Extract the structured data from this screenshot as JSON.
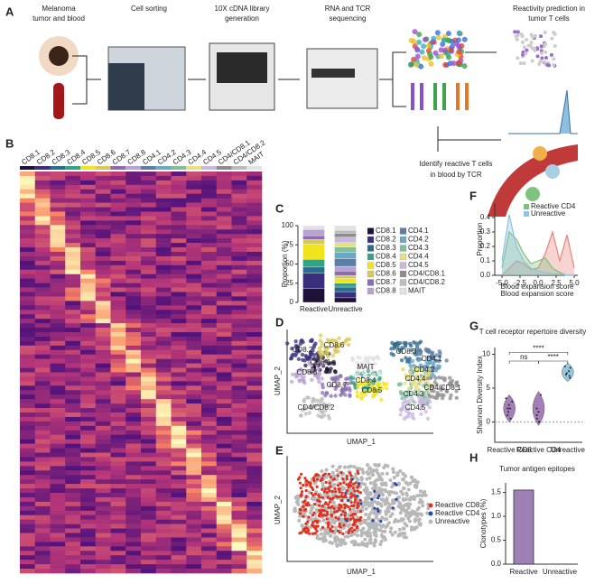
{
  "panel_labels": [
    "A",
    "B",
    "C",
    "D",
    "E",
    "F",
    "G",
    "H"
  ],
  "workflow": {
    "steps": [
      [
        "Melanoma",
        "tumor and blood"
      ],
      [
        "Cell sorting"
      ],
      [
        "10X cDNA library",
        "generation"
      ],
      [
        "RNA and TCR",
        "sequencing"
      ],
      [
        "Reactivity prediction in",
        "tumor T cells"
      ]
    ],
    "identify": [
      "Identify reactive T cells",
      "in blood by TCR"
    ]
  },
  "heatmap": {
    "clusters": [
      "CD8.1",
      "CD8.2",
      "CD8.3",
      "CD8.4",
      "CD8.5",
      "CD8.6",
      "CD8.7",
      "CD8.8",
      "CD4.1",
      "CD4.2",
      "CD4.3",
      "CD4.4",
      "CD4.5",
      "CD4/CD8.1",
      "CD4/CD8.2",
      "MAIT"
    ]
  },
  "chart_data": [
    {
      "type": "stacked_bar",
      "ylabel": "Proportion (%)",
      "categories": [
        "Reactive",
        "Unreactive"
      ],
      "ylim": [
        0,
        100
      ],
      "yticks": [
        0,
        25,
        50,
        75,
        100
      ],
      "series": [
        {
          "name": "CD8.1",
          "color": "#1c1136",
          "values": [
            18,
            6
          ]
        },
        {
          "name": "CD8.2",
          "color": "#3a2f7c",
          "values": [
            20,
            8
          ]
        },
        {
          "name": "CD8.3",
          "color": "#2d6b8c",
          "values": [
            8,
            6
          ]
        },
        {
          "name": "CD8.4",
          "color": "#35a287",
          "values": [
            10,
            5
          ]
        },
        {
          "name": "CD8.5",
          "color": "#f2e41c",
          "values": [
            20,
            6
          ]
        },
        {
          "name": "CD8.6",
          "color": "#d8c85a",
          "values": [
            6,
            4
          ]
        },
        {
          "name": "CD8.7",
          "color": "#8a6fb0",
          "values": [
            5,
            6
          ]
        },
        {
          "name": "CD8.8",
          "color": "#b9a2d2",
          "values": [
            8,
            6
          ]
        },
        {
          "name": "CD4.1",
          "color": "#5b7da6",
          "values": [
            0,
            10
          ]
        },
        {
          "name": "CD4.2",
          "color": "#6ba8c3",
          "values": [
            0,
            8
          ]
        },
        {
          "name": "CD4.3",
          "color": "#80be9c",
          "values": [
            0,
            7
          ]
        },
        {
          "name": "CD4.4",
          "color": "#e8e07a",
          "values": [
            0,
            6
          ]
        },
        {
          "name": "CD4.5",
          "color": "#c8b7e1",
          "values": [
            0,
            7
          ]
        },
        {
          "name": "CD4/CD8.1",
          "color": "#8c8c8c",
          "values": [
            0,
            5
          ]
        },
        {
          "name": "CD4/CD8.2",
          "color": "#bcbcbc",
          "values": [
            0,
            4
          ]
        },
        {
          "name": "MAIT",
          "color": "#e2e2e2",
          "values": [
            5,
            6
          ]
        }
      ]
    },
    {
      "type": "density",
      "ylabel": "Proportion",
      "xlabel": "Blood expansion score",
      "x": [
        -5,
        -4,
        -3,
        -2,
        -1,
        0,
        1,
        2,
        3,
        4,
        5
      ],
      "xlim": [
        -6,
        5.5
      ],
      "ylim": [
        0,
        0.5
      ],
      "xticks": [
        {
          "value": -5,
          "label": "-5.0"
        },
        {
          "value": -2.5,
          "label": "-2.5"
        },
        {
          "value": 0,
          "label": "0.0"
        },
        {
          "value": 2.5,
          "label": "2.5"
        },
        {
          "value": 5,
          "label": "5.0"
        }
      ],
      "yticks": [
        {
          "value": 0,
          "label": "0.0"
        },
        {
          "value": 0.1,
          "label": "0.1"
        },
        {
          "value": 0.2,
          "label": "0.2"
        },
        {
          "value": 0.3,
          "label": "0.3"
        },
        {
          "value": 0.4,
          "label": "0.4"
        }
      ],
      "series": [
        {
          "color": "#e8857a",
          "values": [
            0,
            0.05,
            0.1,
            0.08,
            0.04,
            0.05,
            0.15,
            0.3,
            0.1,
            0.28,
            0.05
          ]
        },
        {
          "name": "Reactive CD4",
          "color": "#7fbf7f",
          "values": [
            0.05,
            0.3,
            0.25,
            0.15,
            0.08,
            0.1,
            0.12,
            0.05,
            0.02,
            0,
            0
          ]
        },
        {
          "name": "Unreactive",
          "color": "#8fc3e0",
          "values": [
            0.1,
            0.42,
            0.2,
            0.1,
            0.05,
            0.03,
            0.02,
            0.01,
            0.01,
            0,
            0
          ]
        }
      ]
    },
    {
      "type": "violin",
      "title": "T cell receptor repertoire diversity",
      "ylabel": "Shannon Diversity Index",
      "categories": [
        "Reactive CD8",
        "Reactive CD4",
        "Unreactive"
      ],
      "colors": [
        "#8e5fa8",
        "#8e5fa8",
        "#7ab8d6"
      ],
      "ylim": [
        -3,
        11
      ],
      "yticks": [
        0,
        5,
        10
      ],
      "values": [
        [
          1,
          2,
          3,
          2.5,
          1.5,
          0.5,
          2,
          3.5
        ],
        [
          0,
          0.5,
          1,
          2,
          4,
          1.5,
          0
        ],
        [
          6.5,
          7,
          7.5,
          8,
          7.2,
          6.8,
          8.2
        ]
      ],
      "annotations": [
        "ns",
        "****",
        "****"
      ]
    },
    {
      "type": "bar",
      "title": "Tumor antigen epitopes",
      "ylabel": "Clonotypes (%)",
      "categories": [
        "Reactive",
        "Unreactive"
      ],
      "values": [
        1.55,
        0
      ],
      "color": "#9d81b5",
      "ylim": [
        0,
        1.7
      ],
      "yticks": [
        {
          "value": 0,
          "label": "0.0"
        },
        {
          "value": 0.5,
          "label": "0.5"
        },
        {
          "value": 1,
          "label": "1.0"
        },
        {
          "value": 1.5,
          "label": "1.5"
        }
      ]
    }
  ],
  "umap": {
    "xlabel": "UMAP_1",
    "ylabel": "UMAP_2",
    "legend": [
      {
        "name": "Reactive CD8",
        "color": "#e0321e"
      },
      {
        "name": "Reactive CD4",
        "color": "#2b4aa8"
      },
      {
        "name": "Unreactive",
        "color": "#b8b8b8"
      }
    ]
  }
}
